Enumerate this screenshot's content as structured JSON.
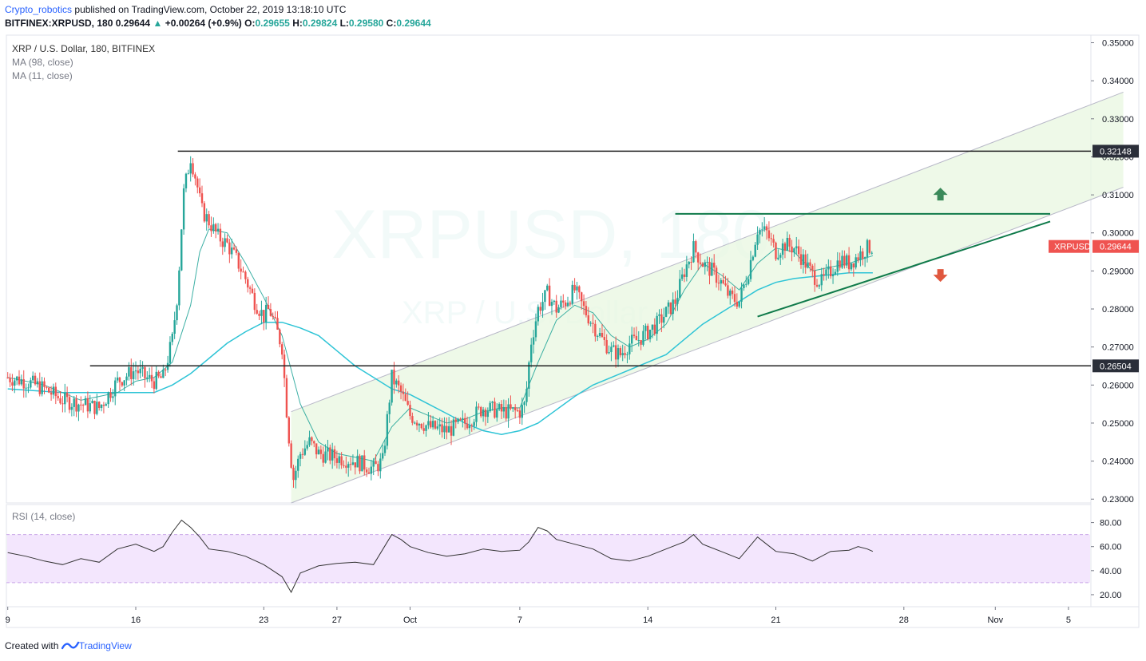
{
  "header": {
    "author": "Crypto_robotics",
    "published": "published on TradingView.com, October 22, 2019 13:18:10 UTC",
    "symbol_line": "BITFINEX:XRPUSD, 180",
    "last": "0.29644",
    "change": "+0.00264 (+0.9%)",
    "o_label": "O:",
    "o": "0.29655",
    "h_label": "H:",
    "h": "0.29824",
    "l_label": "L:",
    "l": "0.29580",
    "c_label": "C:",
    "c": "0.29644"
  },
  "legend": {
    "title": "XRP / U.S. Dollar, 180, BITFINEX",
    "ma98": "MA (98, close)",
    "ma11": "MA (11, close)",
    "rsi": "RSI (14, close)"
  },
  "watermark": {
    "symbol": "XRPUSD, 180",
    "name": "XRP / U.S. Dollar"
  },
  "footer": {
    "created_with": "Created with",
    "brand": "TradingView"
  },
  "colors": {
    "up": "#26a69a",
    "down": "#ef5350",
    "ma98": "#2ec4d6",
    "ma11": "#26a69a",
    "channel_fill": "#e8f7e0",
    "rsi_band": "#f3e6fd",
    "rsi_line": "#333333",
    "trendline": "#0f7a4a",
    "level_line": "#222222",
    "price_tag": "#ef5350"
  },
  "chart_data": {
    "type": "candlestick",
    "symbol": "XRPUSD",
    "timeframe": "180",
    "price_axis": {
      "ticks": [
        "0.35000",
        "0.34000",
        "0.33000",
        "0.32000",
        "0.31000",
        "0.30000",
        "0.29000",
        "0.28000",
        "0.27000",
        "0.26000",
        "0.25000",
        "0.24000",
        "0.23000"
      ],
      "ylim": [
        0.229,
        0.352
      ]
    },
    "time_axis": {
      "ticks": [
        "9",
        "16",
        "23",
        "27",
        "Oct",
        "7",
        "14",
        "21",
        "28",
        "Nov",
        "5"
      ]
    },
    "levels": [
      {
        "label": "0.32148",
        "price": 0.32148
      },
      {
        "label": "0.26504",
        "price": 0.26504
      }
    ],
    "current_price": {
      "label": "XRPUSD",
      "price_label": "0.29644",
      "price": 0.29644
    },
    "close_path": [
      [
        9,
        0.262
      ],
      [
        10,
        0.261
      ],
      [
        11,
        0.259
      ],
      [
        12,
        0.256
      ],
      [
        13,
        0.255
      ],
      [
        14,
        0.254
      ],
      [
        15,
        0.261
      ],
      [
        16,
        0.264
      ],
      [
        16.5,
        0.262
      ],
      [
        17,
        0.261
      ],
      [
        17.5,
        0.262
      ],
      [
        18,
        0.272
      ],
      [
        18.3,
        0.285
      ],
      [
        18.6,
        0.31
      ],
      [
        19,
        0.32
      ],
      [
        19.3,
        0.314
      ],
      [
        19.6,
        0.306
      ],
      [
        20,
        0.303
      ],
      [
        20.5,
        0.299
      ],
      [
        21,
        0.297
      ],
      [
        21.5,
        0.293
      ],
      [
        22,
        0.288
      ],
      [
        22.5,
        0.282
      ],
      [
        23,
        0.278
      ],
      [
        23.3,
        0.28
      ],
      [
        23.6,
        0.276
      ],
      [
        24,
        0.27
      ],
      [
        24.3,
        0.25
      ],
      [
        24.6,
        0.235
      ],
      [
        25,
        0.242
      ],
      [
        25.5,
        0.245
      ],
      [
        26,
        0.242
      ],
      [
        27,
        0.241
      ],
      [
        28,
        0.24
      ],
      [
        28.5,
        0.239
      ],
      [
        29,
        0.238
      ],
      [
        29.5,
        0.24
      ],
      [
        30,
        0.262
      ],
      [
        30.5,
        0.258
      ],
      [
        31,
        0.252
      ],
      [
        32,
        0.249
      ],
      [
        33,
        0.248
      ],
      [
        34,
        0.25
      ],
      [
        35,
        0.254
      ],
      [
        36,
        0.253
      ],
      [
        37,
        0.253
      ],
      [
        37.3,
        0.255
      ],
      [
        37.6,
        0.271
      ],
      [
        38,
        0.28
      ],
      [
        38.5,
        0.284
      ],
      [
        39,
        0.28
      ],
      [
        39.5,
        0.282
      ],
      [
        40,
        0.285
      ],
      [
        40.5,
        0.28
      ],
      [
        41,
        0.276
      ],
      [
        41.5,
        0.272
      ],
      [
        42,
        0.269
      ],
      [
        42.5,
        0.268
      ],
      [
        43,
        0.271
      ],
      [
        43.5,
        0.272
      ],
      [
        44,
        0.274
      ],
      [
        44.5,
        0.276
      ],
      [
        45,
        0.279
      ],
      [
        45.5,
        0.282
      ],
      [
        46,
        0.29
      ],
      [
        46.5,
        0.296
      ],
      [
        47,
        0.292
      ],
      [
        47.5,
        0.29
      ],
      [
        48,
        0.287
      ],
      [
        48.5,
        0.283
      ],
      [
        49,
        0.282
      ],
      [
        49.5,
        0.29
      ],
      [
        50,
        0.301
      ],
      [
        50.5,
        0.3
      ],
      [
        51,
        0.295
      ],
      [
        51.5,
        0.297
      ],
      [
        52,
        0.296
      ],
      [
        52.5,
        0.293
      ],
      [
        53,
        0.289
      ],
      [
        53.5,
        0.287
      ],
      [
        54,
        0.29
      ],
      [
        54.5,
        0.293
      ],
      [
        55,
        0.292
      ],
      [
        55.5,
        0.294
      ],
      [
        56,
        0.296
      ],
      [
        56.3,
        0.2964
      ]
    ],
    "ma98_path": [
      [
        9,
        0.259
      ],
      [
        12,
        0.258
      ],
      [
        15,
        0.258
      ],
      [
        17,
        0.258
      ],
      [
        18,
        0.26
      ],
      [
        19,
        0.263
      ],
      [
        20,
        0.267
      ],
      [
        21,
        0.271
      ],
      [
        22,
        0.274
      ],
      [
        23,
        0.2765
      ],
      [
        24,
        0.2765
      ],
      [
        25,
        0.275
      ],
      [
        26,
        0.273
      ],
      [
        27,
        0.269
      ],
      [
        28,
        0.265
      ],
      [
        29,
        0.262
      ],
      [
        30,
        0.259
      ],
      [
        31,
        0.2575
      ],
      [
        32,
        0.255
      ],
      [
        33,
        0.2525
      ],
      [
        34,
        0.25
      ],
      [
        35,
        0.248
      ],
      [
        36,
        0.247
      ],
      [
        37,
        0.248
      ],
      [
        38,
        0.25
      ],
      [
        39,
        0.2535
      ],
      [
        40,
        0.257
      ],
      [
        41,
        0.26
      ],
      [
        42,
        0.262
      ],
      [
        43,
        0.264
      ],
      [
        44,
        0.266
      ],
      [
        45,
        0.268
      ],
      [
        46,
        0.272
      ],
      [
        47,
        0.276
      ],
      [
        48,
        0.279
      ],
      [
        49,
        0.282
      ],
      [
        50,
        0.285
      ],
      [
        51,
        0.287
      ],
      [
        52,
        0.288
      ],
      [
        53,
        0.2885
      ],
      [
        54,
        0.289
      ],
      [
        55,
        0.2895
      ],
      [
        56.3,
        0.2895
      ]
    ],
    "ma11_path": [
      [
        9,
        0.262
      ],
      [
        11,
        0.26
      ],
      [
        13,
        0.256
      ],
      [
        15,
        0.258
      ],
      [
        16,
        0.261
      ],
      [
        17,
        0.262
      ],
      [
        18,
        0.266
      ],
      [
        19,
        0.281
      ],
      [
        19.5,
        0.295
      ],
      [
        20,
        0.301
      ],
      [
        21,
        0.3
      ],
      [
        22,
        0.292
      ],
      [
        23,
        0.283
      ],
      [
        24,
        0.273
      ],
      [
        25,
        0.255
      ],
      [
        26,
        0.245
      ],
      [
        27,
        0.242
      ],
      [
        28,
        0.241
      ],
      [
        29,
        0.24
      ],
      [
        30,
        0.249
      ],
      [
        31,
        0.254
      ],
      [
        32,
        0.252
      ],
      [
        33,
        0.25
      ],
      [
        34,
        0.251
      ],
      [
        35,
        0.253
      ],
      [
        36,
        0.254
      ],
      [
        37,
        0.254
      ],
      [
        38,
        0.266
      ],
      [
        39,
        0.277
      ],
      [
        40,
        0.281
      ],
      [
        41,
        0.279
      ],
      [
        42,
        0.273
      ],
      [
        43,
        0.27
      ],
      [
        44,
        0.272
      ],
      [
        45,
        0.276
      ],
      [
        46,
        0.285
      ],
      [
        47,
        0.292
      ],
      [
        48,
        0.289
      ],
      [
        49,
        0.285
      ],
      [
        50,
        0.292
      ],
      [
        51,
        0.296
      ],
      [
        52,
        0.295
      ],
      [
        53,
        0.29
      ],
      [
        54,
        0.291
      ],
      [
        55,
        0.292
      ],
      [
        56.3,
        0.294
      ]
    ],
    "rsi": {
      "ticks": [
        "80.00",
        "60.00",
        "40.00",
        "20.00"
      ],
      "ylim": [
        10,
        95
      ],
      "band": [
        30,
        70
      ],
      "path": [
        [
          9,
          55
        ],
        [
          10,
          52
        ],
        [
          11,
          48
        ],
        [
          12,
          45
        ],
        [
          13,
          50
        ],
        [
          14,
          47
        ],
        [
          15,
          58
        ],
        [
          16,
          62
        ],
        [
          17,
          56
        ],
        [
          17.5,
          60
        ],
        [
          18,
          72
        ],
        [
          18.5,
          82
        ],
        [
          19,
          76
        ],
        [
          19.5,
          68
        ],
        [
          20,
          58
        ],
        [
          21,
          56
        ],
        [
          22,
          52
        ],
        [
          23,
          45
        ],
        [
          23.5,
          40
        ],
        [
          24,
          35
        ],
        [
          24.5,
          22
        ],
        [
          25,
          38
        ],
        [
          26,
          44
        ],
        [
          27,
          46
        ],
        [
          28,
          47
        ],
        [
          29,
          45
        ],
        [
          30,
          70
        ],
        [
          30.5,
          66
        ],
        [
          31,
          60
        ],
        [
          32,
          55
        ],
        [
          33,
          52
        ],
        [
          34,
          54
        ],
        [
          35,
          58
        ],
        [
          36,
          56
        ],
        [
          37,
          57
        ],
        [
          37.5,
          64
        ],
        [
          38,
          76
        ],
        [
          38.5,
          73
        ],
        [
          39,
          66
        ],
        [
          40,
          62
        ],
        [
          41,
          58
        ],
        [
          42,
          50
        ],
        [
          43,
          48
        ],
        [
          44,
          52
        ],
        [
          45,
          58
        ],
        [
          46,
          64
        ],
        [
          46.5,
          70
        ],
        [
          47,
          62
        ],
        [
          48,
          56
        ],
        [
          49,
          50
        ],
        [
          50,
          68
        ],
        [
          50.5,
          62
        ],
        [
          51,
          56
        ],
        [
          52,
          54
        ],
        [
          53,
          48
        ],
        [
          54,
          56
        ],
        [
          55,
          57
        ],
        [
          55.5,
          60
        ],
        [
          56,
          58
        ],
        [
          56.3,
          56
        ]
      ]
    },
    "annotations": [
      {
        "type": "rising_channel",
        "lower_start": [
          24.5,
          0.229
        ],
        "lower_end": [
          70,
          0.312
        ],
        "upper_start": [
          24.5,
          0.253
        ],
        "upper_end": [
          70,
          0.337
        ]
      },
      {
        "type": "horizontal_line",
        "price": 0.305,
        "from_day": 45.5,
        "to_day": 66
      },
      {
        "type": "ascending_trendline",
        "start": [
          50,
          0.278
        ],
        "end": [
          66,
          0.303
        ]
      },
      {
        "type": "arrow_up",
        "day": 60,
        "price": 0.31
      },
      {
        "type": "arrow_down",
        "day": 60,
        "price": 0.289
      }
    ]
  }
}
